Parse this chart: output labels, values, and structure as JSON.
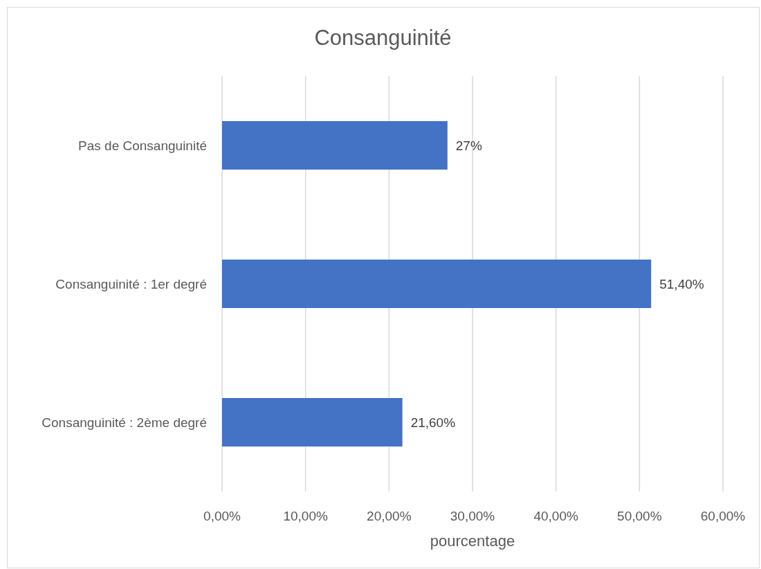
{
  "chart_data": {
    "type": "bar",
    "orientation": "horizontal",
    "title": "Consanguinité",
    "xlabel": "pourcentage",
    "categories": [
      "Pas de Consanguinité",
      "Consanguinité : 1er degré",
      "Consanguinité : 2ème degré"
    ],
    "values": [
      27,
      51.4,
      21.6
    ],
    "color": "#4472c4",
    "value_labels": [
      "27%",
      "51,40%",
      "21,60%"
    ],
    "xlim": [
      0,
      60
    ],
    "xticks": [
      {
        "value": 0,
        "label": "0,00%"
      },
      {
        "value": 10,
        "label": "10,00%"
      },
      {
        "value": 20,
        "label": "20,00%"
      },
      {
        "value": 30,
        "label": "30,00%"
      },
      {
        "value": 40,
        "label": "40,00%"
      },
      {
        "value": 50,
        "label": "50,00%"
      },
      {
        "value": 60,
        "label": "60,00%"
      }
    ],
    "grid": "x"
  }
}
